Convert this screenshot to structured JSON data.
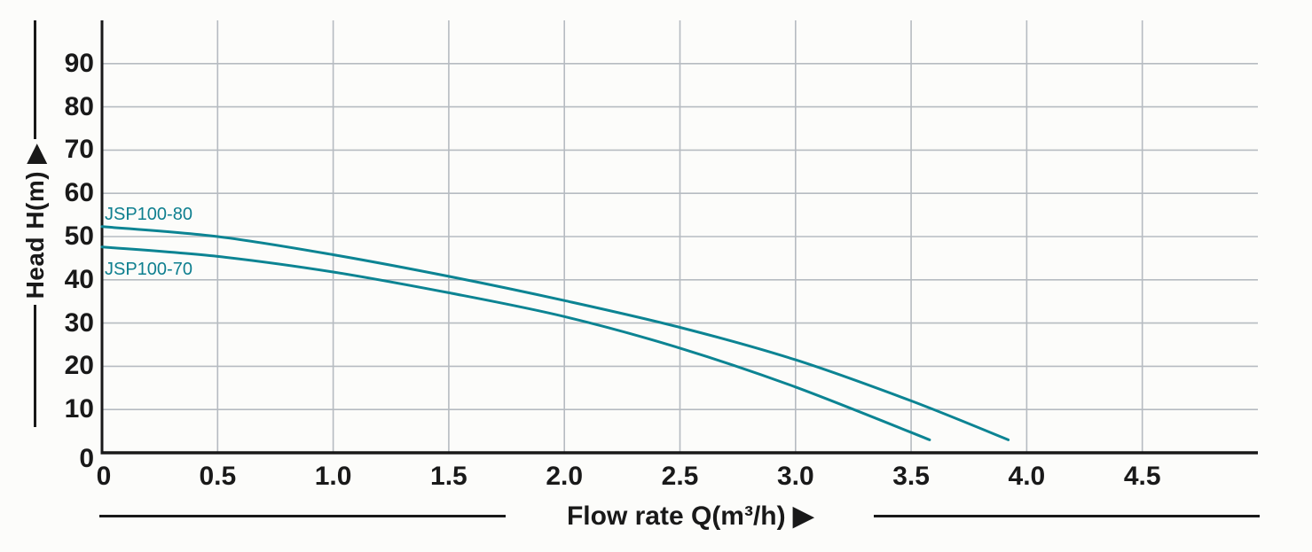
{
  "chart_data": {
    "type": "line",
    "title": "",
    "xlabel": "Flow rate Q(m³/h) ▶",
    "ylabel": "Head H(m) ▶",
    "xlim": [
      0,
      5
    ],
    "ylim": [
      0,
      100
    ],
    "grid": true,
    "legend_position": "inline-curve-labels",
    "x_tick_labels": [
      "0",
      "0.5",
      "1.0",
      "1.5",
      "2.0",
      "2.5",
      "3.0",
      "3.5",
      "4.0",
      "4.5"
    ],
    "y_tick_labels": [
      "0",
      "10",
      "20",
      "30",
      "40",
      "50",
      "60",
      "70",
      "80",
      "90"
    ],
    "x_unit": "m³/h",
    "y_unit": "m",
    "series": [
      {
        "name": "JSP100-80",
        "color": "#0c8493",
        "points": [
          [
            0,
            52.3
          ],
          [
            0.5,
            50.0
          ],
          [
            1.0,
            45.8
          ],
          [
            1.5,
            40.8
          ],
          [
            2.0,
            35.2
          ],
          [
            2.5,
            29.0
          ],
          [
            3.0,
            21.5
          ],
          [
            3.5,
            12.0
          ],
          [
            3.92,
            3.0
          ]
        ]
      },
      {
        "name": "JSP100-70",
        "color": "#0c8493",
        "points": [
          [
            0,
            47.6
          ],
          [
            0.5,
            45.4
          ],
          [
            1.0,
            41.8
          ],
          [
            1.5,
            37.0
          ],
          [
            2.0,
            31.5
          ],
          [
            2.5,
            24.2
          ],
          [
            3.0,
            15.2
          ],
          [
            3.58,
            3.0
          ]
        ]
      }
    ]
  },
  "colors": {
    "background": "#fcfcfa",
    "grid": "#b6bbc1",
    "axis": "#191919",
    "curve": "#0c8493",
    "curve_label": "#0e7f8f",
    "text": "#191919"
  }
}
